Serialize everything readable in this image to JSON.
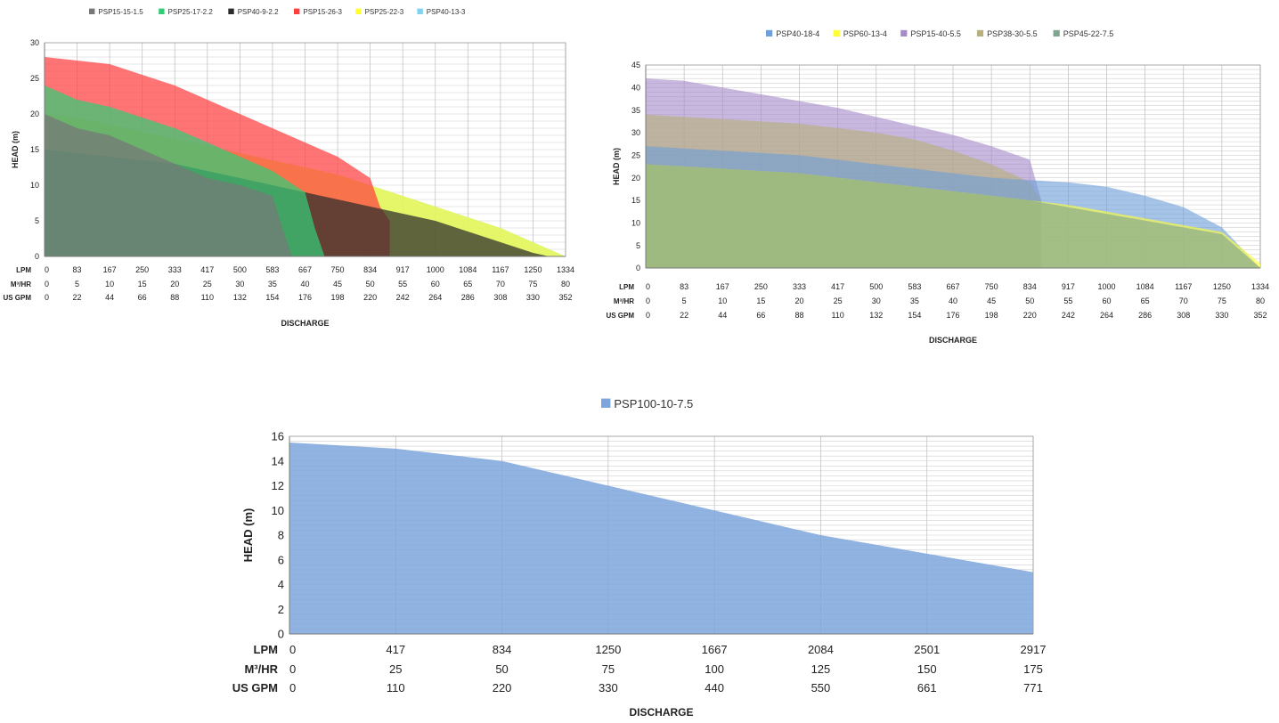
{
  "chart_data": [
    {
      "type": "area",
      "ylabel": "HEAD (m)",
      "xlabel": "DISCHARGE",
      "ylim": [
        0,
        30
      ],
      "yticks": [
        0,
        5,
        10,
        15,
        20,
        25,
        30
      ],
      "x_rows": [
        {
          "label": "LPM",
          "values": [
            "0",
            "83",
            "167",
            "250",
            "333",
            "417",
            "500",
            "583",
            "667",
            "750",
            "834",
            "917",
            "1000",
            "1084",
            "1167",
            "1250",
            "1334"
          ]
        },
        {
          "label": "M³/HR",
          "values": [
            "0",
            "5",
            "10",
            "15",
            "20",
            "25",
            "30",
            "35",
            "40",
            "45",
            "50",
            "55",
            "60",
            "65",
            "70",
            "75",
            "80"
          ]
        },
        {
          "label": "US GPM",
          "values": [
            "0",
            "22",
            "44",
            "66",
            "88",
            "110",
            "132",
            "154",
            "176",
            "198",
            "220",
            "242",
            "264",
            "286",
            "308",
            "330",
            "352"
          ]
        }
      ],
      "legend_position": "top",
      "grid": true,
      "series": [
        {
          "name": "PSP40-13-3",
          "color": "#7fd3f0",
          "x": [
            0,
            1,
            2,
            3,
            4,
            5,
            6,
            7,
            8,
            9,
            10,
            11,
            12,
            13,
            14,
            15,
            16
          ],
          "values": [
            20,
            19.5,
            18.5,
            17.5,
            16.5,
            15.5,
            14.5,
            13.5,
            12.5,
            11.5,
            10,
            8.5,
            7,
            5.5,
            4,
            2,
            0
          ]
        },
        {
          "name": "PSP25-22-3",
          "color": "#ffff33",
          "x": [
            0,
            1,
            2,
            3,
            4,
            5,
            6,
            7,
            8,
            9,
            10,
            11,
            12,
            13,
            14,
            15,
            16
          ],
          "values": [
            20,
            19.5,
            18.5,
            17.5,
            16.5,
            15.5,
            14.5,
            13.5,
            12.5,
            11.5,
            10,
            8.5,
            7,
            5.5,
            4,
            2,
            0
          ]
        },
        {
          "name": "PSP15-26-3",
          "color": "#ff4040",
          "x": [
            0,
            1,
            2,
            3,
            4,
            5,
            6,
            7,
            8,
            9,
            10,
            10.3,
            10.6
          ],
          "values": [
            28,
            27.5,
            27,
            25.5,
            24,
            22,
            20,
            18,
            16,
            14,
            11,
            7,
            5
          ]
        },
        {
          "name": "PSP40-9-2.2",
          "color": "#2b2b2b",
          "x": [
            0,
            1,
            2,
            3,
            4,
            5,
            6,
            7,
            8,
            9,
            10,
            11,
            12,
            13,
            14,
            15,
            15.5
          ],
          "values": [
            15,
            14.5,
            14,
            13.5,
            13,
            12,
            11,
            10,
            9,
            8,
            7,
            6,
            5,
            3.5,
            2,
            0.5,
            0
          ]
        },
        {
          "name": "PSP25-17-2.2",
          "color": "#33cc77",
          "x": [
            0,
            1,
            2,
            3,
            4,
            5,
            6,
            7,
            8,
            8.3,
            8.6
          ],
          "values": [
            24,
            22,
            21,
            19.5,
            18,
            16,
            14,
            12,
            9,
            4,
            0
          ]
        },
        {
          "name": "PSP15-15-1.5",
          "color": "#777777",
          "x": [
            0,
            1,
            2,
            3,
            4,
            5,
            6,
            7,
            7.3,
            7.6
          ],
          "values": [
            20,
            18,
            17,
            15,
            13,
            11,
            10,
            8.5,
            4,
            0
          ]
        }
      ]
    },
    {
      "type": "area",
      "ylabel": "HEAD (m)",
      "xlabel": "DISCHARGE",
      "ylim": [
        0,
        45
      ],
      "yticks": [
        0,
        5,
        10,
        15,
        20,
        25,
        30,
        35,
        40,
        45
      ],
      "x_rows": [
        {
          "label": "LPM",
          "values": [
            "0",
            "83",
            "167",
            "250",
            "333",
            "417",
            "500",
            "583",
            "667",
            "750",
            "834",
            "917",
            "1000",
            "1084",
            "1167",
            "1250",
            "1334"
          ]
        },
        {
          "label": "M³/HR",
          "values": [
            "0",
            "5",
            "10",
            "15",
            "20",
            "25",
            "30",
            "35",
            "40",
            "45",
            "50",
            "55",
            "60",
            "65",
            "70",
            "75",
            "80"
          ]
        },
        {
          "label": "US GPM",
          "values": [
            "0",
            "22",
            "44",
            "66",
            "88",
            "110",
            "132",
            "154",
            "176",
            "198",
            "220",
            "242",
            "264",
            "286",
            "308",
            "330",
            "352"
          ]
        }
      ],
      "legend_position": "top",
      "grid": true,
      "series": [
        {
          "name": "PSP15-40-5.5",
          "color": "#a78bc9",
          "x": [
            0,
            1,
            2,
            3,
            4,
            5,
            6,
            7,
            8,
            9,
            10,
            10.3
          ],
          "values": [
            42,
            41.5,
            40,
            38.5,
            37,
            35.5,
            33.5,
            31.5,
            29.5,
            27,
            24,
            15
          ]
        },
        {
          "name": "PSP38-30-5.5",
          "color": "#b7b07a",
          "x": [
            0,
            1,
            2,
            3,
            4,
            5,
            6,
            7,
            8,
            9,
            10,
            10.3
          ],
          "values": [
            34,
            33.5,
            33,
            32.5,
            32,
            31,
            30,
            28.5,
            26,
            23,
            19,
            15
          ]
        },
        {
          "name": "PSP40-18-4",
          "color": "#6fa0d8",
          "x": [
            0,
            1,
            2,
            3,
            4,
            5,
            6,
            7,
            8,
            9,
            10,
            11,
            12,
            13,
            14,
            15,
            16
          ],
          "values": [
            27,
            26.5,
            26,
            25.5,
            25,
            24,
            23,
            22,
            21,
            20,
            19.5,
            19,
            18,
            16,
            13.5,
            9,
            0
          ]
        },
        {
          "name": "PSP60-13-4",
          "color": "#ffff33",
          "x": [
            0,
            1,
            2,
            3,
            4,
            5,
            6,
            7,
            8,
            9,
            10,
            11,
            12,
            13,
            14,
            15,
            16
          ],
          "values": [
            23,
            22.5,
            22,
            21.5,
            21,
            20,
            19,
            18,
            17,
            16,
            15,
            14,
            12.5,
            11,
            9.5,
            8,
            1
          ]
        },
        {
          "name": "PSP45-22-7.5",
          "color": "#7fa58f",
          "x": [
            0,
            1,
            2,
            3,
            4,
            5,
            6,
            7,
            8,
            9,
            10,
            11,
            12,
            13,
            14,
            15,
            16
          ],
          "values": [
            23,
            22.5,
            22,
            21.5,
            21,
            20,
            19,
            18,
            17,
            16,
            15,
            13.5,
            12,
            10.5,
            9,
            7.5,
            0
          ]
        }
      ]
    },
    {
      "type": "area",
      "ylabel": "HEAD (m)",
      "xlabel": "DISCHARGE",
      "ylim": [
        0,
        16
      ],
      "yticks": [
        0,
        2,
        4,
        6,
        8,
        10,
        12,
        14,
        16
      ],
      "x_rows": [
        {
          "label": "LPM",
          "values": [
            "0",
            "417",
            "834",
            "1250",
            "1667",
            "2084",
            "2501",
            "2917"
          ]
        },
        {
          "label": "M³/HR",
          "values": [
            "0",
            "25",
            "50",
            "75",
            "100",
            "125",
            "150",
            "175"
          ]
        },
        {
          "label": "US GPM",
          "values": [
            "0",
            "110",
            "220",
            "330",
            "440",
            "550",
            "661",
            "771"
          ]
        }
      ],
      "legend_position": "top",
      "grid": true,
      "series": [
        {
          "name": "PSP100-10-7.5",
          "color": "#7ea6dc",
          "x": [
            0,
            1,
            2,
            3,
            4,
            5,
            6,
            7
          ],
          "values": [
            15.5,
            15,
            14,
            12,
            10,
            8,
            6.5,
            5
          ]
        }
      ]
    }
  ]
}
